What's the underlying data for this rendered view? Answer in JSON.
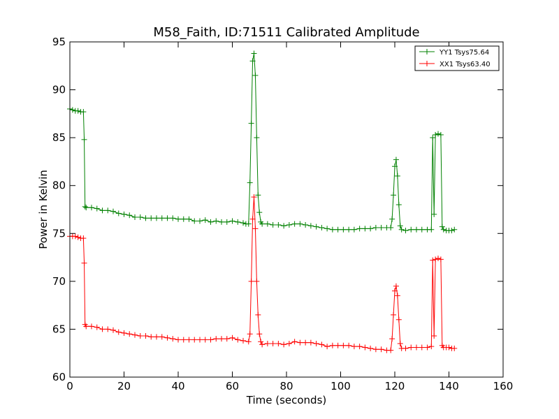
{
  "chart_data": {
    "type": "line",
    "title": "M58_Faith, ID:71511 Calibrated Amplitude",
    "xlabel": "Time (seconds)",
    "ylabel": "Power in Kelvin",
    "xlim": [
      0,
      160
    ],
    "ylim": [
      60,
      95
    ],
    "xticks": [
      "0",
      "20",
      "40",
      "60",
      "80",
      "100",
      "120",
      "140",
      "160"
    ],
    "yticks": [
      "60",
      "65",
      "70",
      "75",
      "80",
      "85",
      "90",
      "95"
    ],
    "grid": false,
    "legend_position": "top-right",
    "marker": "+",
    "series": [
      {
        "name": "YY1 Tsys75.64",
        "color": "#008000",
        "points": [
          [
            0,
            88.0
          ],
          [
            1,
            87.9
          ],
          [
            2,
            87.8
          ],
          [
            3,
            87.8
          ],
          [
            4,
            87.7
          ],
          [
            5,
            87.7
          ],
          [
            5.3,
            84.8
          ],
          [
            5.6,
            77.8
          ],
          [
            6,
            77.7
          ],
          [
            8,
            77.7
          ],
          [
            10,
            77.6
          ],
          [
            12,
            77.4
          ],
          [
            14,
            77.4
          ],
          [
            16,
            77.3
          ],
          [
            18,
            77.1
          ],
          [
            20,
            77.0
          ],
          [
            22,
            76.9
          ],
          [
            24,
            76.7
          ],
          [
            26,
            76.7
          ],
          [
            28,
            76.6
          ],
          [
            30,
            76.6
          ],
          [
            32,
            76.6
          ],
          [
            34,
            76.6
          ],
          [
            36,
            76.6
          ],
          [
            38,
            76.6
          ],
          [
            40,
            76.5
          ],
          [
            42,
            76.5
          ],
          [
            44,
            76.5
          ],
          [
            46,
            76.3
          ],
          [
            48,
            76.3
          ],
          [
            50,
            76.4
          ],
          [
            52,
            76.2
          ],
          [
            54,
            76.3
          ],
          [
            56,
            76.2
          ],
          [
            58,
            76.2
          ],
          [
            60,
            76.3
          ],
          [
            62,
            76.2
          ],
          [
            64,
            76.1
          ],
          [
            65,
            76.0
          ],
          [
            66,
            76.0
          ],
          [
            66.5,
            80.3
          ],
          [
            67,
            86.5
          ],
          [
            67.5,
            93.0
          ],
          [
            68,
            93.8
          ],
          [
            68.5,
            91.5
          ],
          [
            69,
            85.0
          ],
          [
            69.5,
            79.0
          ],
          [
            70,
            77.2
          ],
          [
            70.5,
            76.2
          ],
          [
            71,
            76.0
          ],
          [
            73,
            76.0
          ],
          [
            75,
            75.9
          ],
          [
            77,
            75.9
          ],
          [
            79,
            75.8
          ],
          [
            81,
            75.9
          ],
          [
            83,
            76.0
          ],
          [
            85,
            76.0
          ],
          [
            87,
            75.9
          ],
          [
            89,
            75.8
          ],
          [
            91,
            75.7
          ],
          [
            93,
            75.6
          ],
          [
            95,
            75.5
          ],
          [
            97,
            75.4
          ],
          [
            99,
            75.4
          ],
          [
            101,
            75.4
          ],
          [
            103,
            75.4
          ],
          [
            105,
            75.4
          ],
          [
            107,
            75.5
          ],
          [
            109,
            75.5
          ],
          [
            111,
            75.5
          ],
          [
            113,
            75.6
          ],
          [
            115,
            75.6
          ],
          [
            117,
            75.6
          ],
          [
            118.5,
            75.6
          ],
          [
            119,
            76.5
          ],
          [
            119.5,
            79.0
          ],
          [
            120,
            82.0
          ],
          [
            120.5,
            82.7
          ],
          [
            121,
            81.0
          ],
          [
            121.5,
            78.0
          ],
          [
            122,
            75.8
          ],
          [
            122.5,
            75.4
          ],
          [
            124,
            75.3
          ],
          [
            126,
            75.4
          ],
          [
            128,
            75.4
          ],
          [
            130,
            75.4
          ],
          [
            132,
            75.4
          ],
          [
            133.5,
            75.4
          ],
          [
            134,
            85.0
          ],
          [
            134.5,
            77.0
          ],
          [
            135,
            85.3
          ],
          [
            136,
            85.4
          ],
          [
            137,
            85.3
          ],
          [
            137.5,
            75.7
          ],
          [
            138,
            75.4
          ],
          [
            139,
            75.3
          ],
          [
            140,
            75.3
          ],
          [
            141,
            75.3
          ],
          [
            142,
            75.4
          ]
        ]
      },
      {
        "name": "XX1 Tsys63.40",
        "color": "#ff0000",
        "points": [
          [
            0,
            74.7
          ],
          [
            1,
            74.7
          ],
          [
            2,
            74.7
          ],
          [
            3,
            74.6
          ],
          [
            4,
            74.5
          ],
          [
            5,
            74.5
          ],
          [
            5.3,
            71.9
          ],
          [
            5.6,
            65.5
          ],
          [
            6,
            65.3
          ],
          [
            8,
            65.3
          ],
          [
            10,
            65.2
          ],
          [
            12,
            65.0
          ],
          [
            14,
            65.0
          ],
          [
            16,
            64.9
          ],
          [
            18,
            64.7
          ],
          [
            20,
            64.6
          ],
          [
            22,
            64.5
          ],
          [
            24,
            64.4
          ],
          [
            26,
            64.3
          ],
          [
            28,
            64.3
          ],
          [
            30,
            64.2
          ],
          [
            32,
            64.2
          ],
          [
            34,
            64.2
          ],
          [
            36,
            64.1
          ],
          [
            38,
            64.0
          ],
          [
            40,
            63.9
          ],
          [
            42,
            63.9
          ],
          [
            44,
            63.9
          ],
          [
            46,
            63.9
          ],
          [
            48,
            63.9
          ],
          [
            50,
            63.9
          ],
          [
            52,
            63.9
          ],
          [
            54,
            64.0
          ],
          [
            56,
            64.0
          ],
          [
            58,
            64.0
          ],
          [
            60,
            64.1
          ],
          [
            62,
            63.9
          ],
          [
            64,
            63.8
          ],
          [
            66,
            63.7
          ],
          [
            66.5,
            64.5
          ],
          [
            67,
            70.0
          ],
          [
            67.5,
            76.5
          ],
          [
            68,
            78.8
          ],
          [
            68.5,
            75.5
          ],
          [
            69,
            70.0
          ],
          [
            69.5,
            66.5
          ],
          [
            70,
            64.5
          ],
          [
            70.5,
            63.7
          ],
          [
            71,
            63.4
          ],
          [
            73,
            63.5
          ],
          [
            75,
            63.5
          ],
          [
            77,
            63.5
          ],
          [
            79,
            63.4
          ],
          [
            81,
            63.5
          ],
          [
            83,
            63.7
          ],
          [
            85,
            63.6
          ],
          [
            87,
            63.6
          ],
          [
            89,
            63.6
          ],
          [
            91,
            63.5
          ],
          [
            93,
            63.4
          ],
          [
            95,
            63.2
          ],
          [
            97,
            63.3
          ],
          [
            99,
            63.3
          ],
          [
            101,
            63.3
          ],
          [
            103,
            63.3
          ],
          [
            105,
            63.2
          ],
          [
            107,
            63.2
          ],
          [
            109,
            63.1
          ],
          [
            111,
            63.0
          ],
          [
            113,
            62.9
          ],
          [
            115,
            62.9
          ],
          [
            117,
            62.8
          ],
          [
            118.5,
            62.8
          ],
          [
            119,
            64.0
          ],
          [
            119.5,
            66.5
          ],
          [
            120,
            69.0
          ],
          [
            120.5,
            69.5
          ],
          [
            121,
            68.5
          ],
          [
            121.5,
            66.0
          ],
          [
            122,
            63.5
          ],
          [
            122.5,
            63.0
          ],
          [
            124,
            63.0
          ],
          [
            126,
            63.1
          ],
          [
            128,
            63.1
          ],
          [
            130,
            63.1
          ],
          [
            132,
            63.1
          ],
          [
            133.5,
            63.2
          ],
          [
            134,
            72.2
          ],
          [
            134.5,
            64.3
          ],
          [
            135,
            72.3
          ],
          [
            136,
            72.4
          ],
          [
            137,
            72.3
          ],
          [
            137.5,
            63.3
          ],
          [
            138,
            63.1
          ],
          [
            139,
            63.1
          ],
          [
            140,
            63.1
          ],
          [
            141,
            63.0
          ],
          [
            142,
            63.0
          ]
        ]
      }
    ]
  }
}
